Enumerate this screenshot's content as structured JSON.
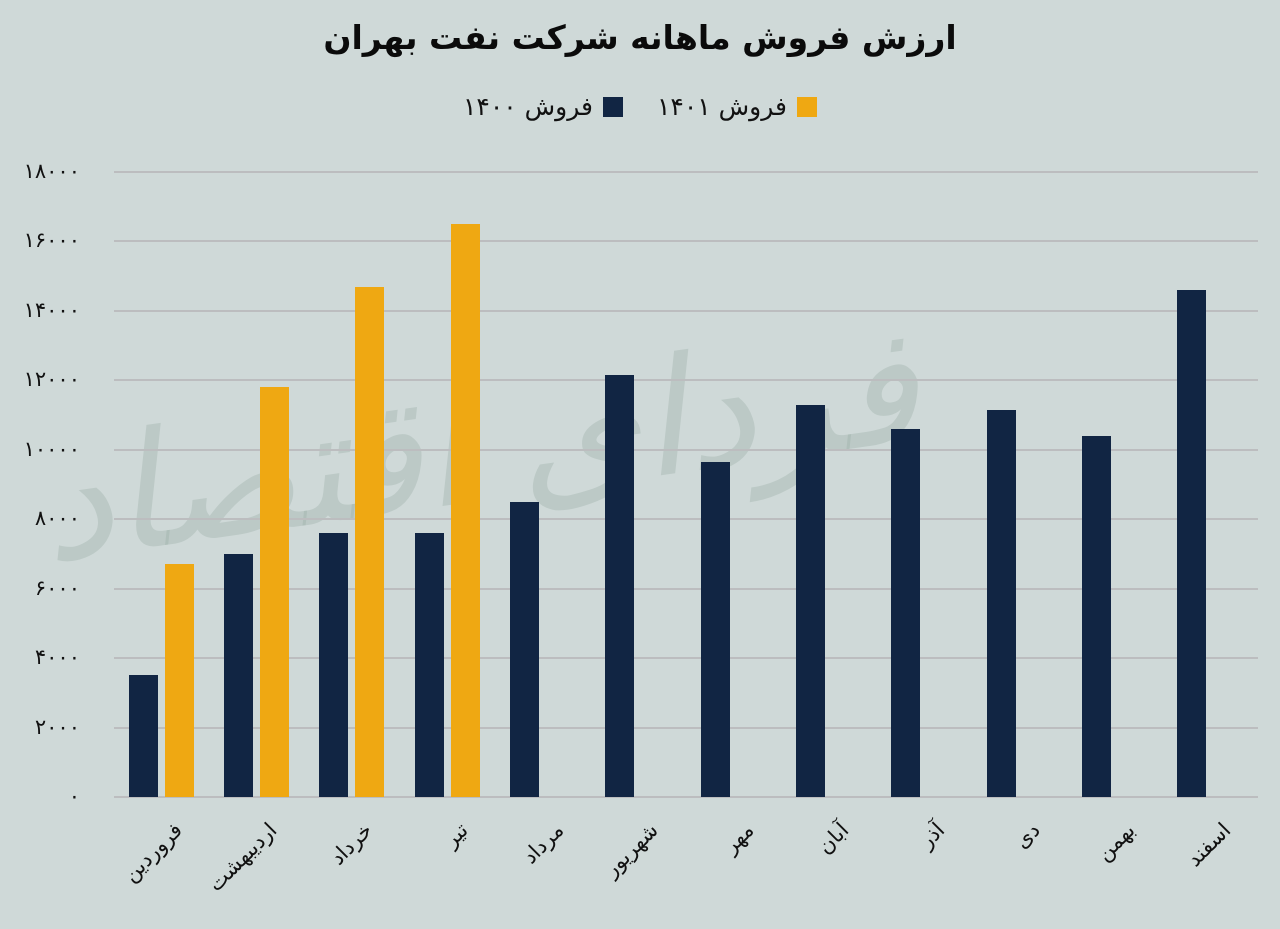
{
  "title": "ارزش فروش ماهانه شرکت نفت بهران",
  "legend": [
    {
      "label": "فروش ۱۴۰۰",
      "color": "#112543"
    },
    {
      "label": "فروش ۱۴۰۱",
      "color": "#EFA812"
    }
  ],
  "watermark": "فردای اقتصاد",
  "y_ticks": [
    {
      "value": 0,
      "label": "۰"
    },
    {
      "value": 2000,
      "label": "۲۰۰۰"
    },
    {
      "value": 4000,
      "label": "۴۰۰۰"
    },
    {
      "value": 6000,
      "label": "۶۰۰۰"
    },
    {
      "value": 8000,
      "label": "۸۰۰۰"
    },
    {
      "value": 10000,
      "label": "۱۰۰۰۰"
    },
    {
      "value": 12000,
      "label": "۱۲۰۰۰"
    },
    {
      "value": 14000,
      "label": "۱۴۰۰۰"
    },
    {
      "value": 16000,
      "label": "۱۶۰۰۰"
    },
    {
      "value": 18000,
      "label": "۱۸۰۰۰"
    }
  ],
  "colors": {
    "background": "#CFD9D8",
    "grid": "#BCBDBF",
    "series_1400": "#112543",
    "series_1401": "#EFA812"
  },
  "chart_data": {
    "type": "bar",
    "title": "ارزش فروش ماهانه شرکت نفت بهران",
    "xlabel": "",
    "ylabel": "",
    "ylim": [
      0,
      18000
    ],
    "grid": true,
    "legend_position": "top",
    "categories": [
      "فروردین",
      "اردیبهشت",
      "خرداد",
      "تیر",
      "مرداد",
      "شهریور",
      "مهر",
      "آبان",
      "آذر",
      "دی",
      "بهمن",
      "اسفند"
    ],
    "series": [
      {
        "name": "فروش ۱۴۰۰",
        "color": "#112543",
        "values": [
          3500,
          7000,
          7600,
          7600,
          8500,
          12150,
          9650,
          11300,
          10600,
          11150,
          10400,
          14600
        ]
      },
      {
        "name": "فروش ۱۴۰۱",
        "color": "#EFA812",
        "values": [
          6700,
          11800,
          14700,
          16500,
          null,
          null,
          null,
          null,
          null,
          null,
          null,
          null
        ]
      }
    ]
  }
}
